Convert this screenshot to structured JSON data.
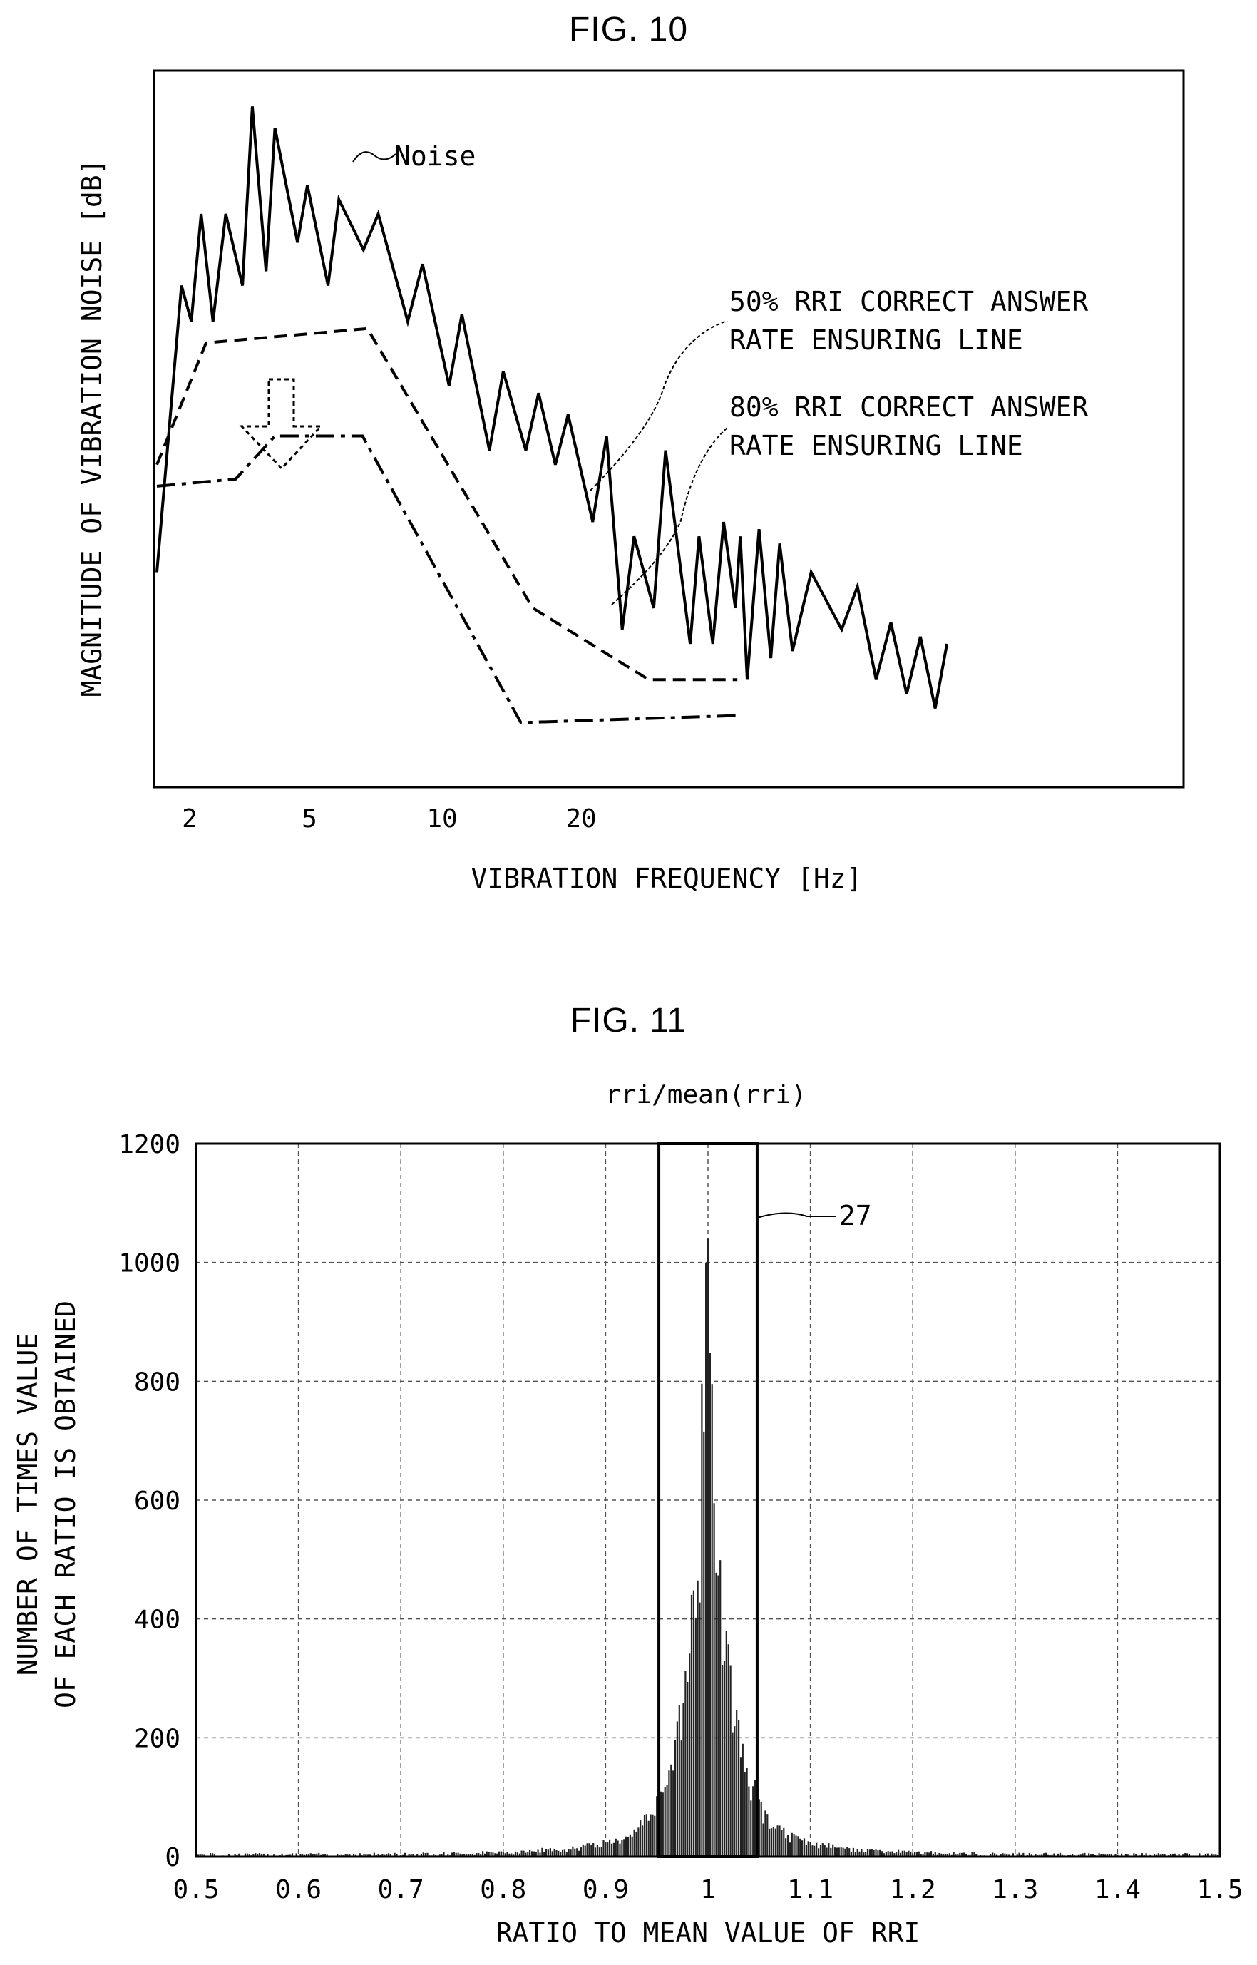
{
  "figures": {
    "fig10": {
      "title": "FIG. 10"
    },
    "fig11": {
      "title": "FIG. 11"
    }
  },
  "chart_data": [
    {
      "type": "line",
      "title": "FIG. 10",
      "xlabel": "VIBRATION FREQUENCY [Hz]",
      "ylabel": "MAGNITUDE OF VIBRATION NOISE [dB]",
      "x_tick_labels": [
        "2",
        "5",
        "10",
        "20"
      ],
      "grid": false,
      "series": [
        {
          "name": "Noise",
          "style": "solid",
          "points": [
            [
              0.0,
              0.3
            ],
            [
              0.025,
              0.7
            ],
            [
              0.035,
              0.65
            ],
            [
              0.045,
              0.8
            ],
            [
              0.057,
              0.65
            ],
            [
              0.07,
              0.8
            ],
            [
              0.087,
              0.7
            ],
            [
              0.097,
              0.95
            ],
            [
              0.111,
              0.72
            ],
            [
              0.12,
              0.92
            ],
            [
              0.143,
              0.76
            ],
            [
              0.153,
              0.84
            ],
            [
              0.174,
              0.7
            ],
            [
              0.185,
              0.82
            ],
            [
              0.21,
              0.75
            ],
            [
              0.225,
              0.8
            ],
            [
              0.255,
              0.65
            ],
            [
              0.27,
              0.73
            ],
            [
              0.297,
              0.56
            ],
            [
              0.31,
              0.66
            ],
            [
              0.338,
              0.47
            ],
            [
              0.352,
              0.58
            ],
            [
              0.375,
              0.47
            ],
            [
              0.388,
              0.55
            ],
            [
              0.405,
              0.45
            ],
            [
              0.418,
              0.52
            ],
            [
              0.443,
              0.37
            ],
            [
              0.457,
              0.49
            ],
            [
              0.473,
              0.22
            ],
            [
              0.485,
              0.35
            ],
            [
              0.505,
              0.25
            ],
            [
              0.517,
              0.47
            ],
            [
              0.542,
              0.2
            ],
            [
              0.551,
              0.35
            ],
            [
              0.565,
              0.2
            ],
            [
              0.576,
              0.37
            ],
            [
              0.588,
              0.25
            ],
            [
              0.593,
              0.35
            ],
            [
              0.6,
              0.15
            ],
            [
              0.612,
              0.36
            ],
            [
              0.624,
              0.18
            ],
            [
              0.633,
              0.34
            ],
            [
              0.646,
              0.19
            ],
            [
              0.665,
              0.3
            ],
            [
              0.696,
              0.22
            ],
            [
              0.712,
              0.28
            ],
            [
              0.731,
              0.15
            ],
            [
              0.746,
              0.23
            ],
            [
              0.762,
              0.13
            ],
            [
              0.776,
              0.21
            ],
            [
              0.791,
              0.11
            ],
            [
              0.803,
              0.2
            ]
          ]
        },
        {
          "name": "50% RRI CORRECT ANSWER RATE ENSURING LINE",
          "style": "dashed",
          "points": [
            [
              0.0,
              0.45
            ],
            [
              0.05,
              0.62
            ],
            [
              0.214,
              0.64
            ],
            [
              0.382,
              0.25
            ],
            [
              0.5,
              0.15
            ],
            [
              0.59,
              0.15
            ]
          ]
        },
        {
          "name": "80% RRI CORRECT ANSWER RATE ENSURING LINE",
          "style": "dash-dot",
          "points": [
            [
              0.0,
              0.42
            ],
            [
              0.08,
              0.43
            ],
            [
              0.12,
              0.49
            ],
            [
              0.209,
              0.49
            ],
            [
              0.37,
              0.09
            ],
            [
              0.59,
              0.1
            ]
          ]
        }
      ],
      "annotations": [
        {
          "text": "Noise",
          "target": "Noise"
        },
        {
          "text": "50% RRI CORRECT ANSWER\nRATE ENSURING LINE",
          "target": "50% RRI CORRECT ANSWER RATE ENSURING LINE"
        },
        {
          "text": "80% RRI CORRECT ANSWER\nRATE ENSURING LINE",
          "target": "80% RRI CORRECT ANSWER RATE ENSURING LINE"
        }
      ],
      "annotation_lines": {
        "l50": "50% RRI CORRECT ANSWER",
        "l50b": "RATE ENSURING LINE",
        "l80": "80% RRI CORRECT ANSWER",
        "l80b": "RATE ENSURING LINE"
      },
      "arrow": {
        "direction": "down",
        "meaning": "shift from 50% line to 80% line"
      }
    },
    {
      "type": "bar",
      "title": "FIG. 11",
      "subtitle": "rri/mean(rri)",
      "xlabel": "RATIO TO MEAN VALUE OF RRI",
      "ylabel": "NUMBER OF TIMES VALUE\nOF EACH RATIO IS OBTAINED",
      "ylabel_lines": [
        "NUMBER OF TIMES VALUE",
        "OF EACH RATIO IS OBTAINED"
      ],
      "xlim": [
        0.5,
        1.5
      ],
      "ylim": [
        0,
        1200
      ],
      "x_ticks": [
        0.5,
        0.6,
        0.7,
        0.8,
        0.9,
        1.0,
        1.1,
        1.2,
        1.3,
        1.4,
        1.5
      ],
      "x_tick_labels": [
        "0.5",
        "0.6",
        "0.7",
        "0.8",
        "0.9",
        "1",
        "1.1",
        "1.2",
        "1.3",
        "1.4",
        "1.5"
      ],
      "y_ticks": [
        0,
        200,
        400,
        600,
        800,
        1000,
        1200
      ],
      "y_tick_labels": [
        "0",
        "200",
        "400",
        "600",
        "800",
        "1000",
        "1200"
      ],
      "grid": true,
      "distribution": {
        "center": 1.0,
        "peak": 1040,
        "shape": "sharp peak, long tails"
      },
      "highlight_box": {
        "x_range": [
          0.952,
          1.048
        ],
        "y_range": [
          0,
          1200
        ],
        "label": "27"
      }
    }
  ]
}
